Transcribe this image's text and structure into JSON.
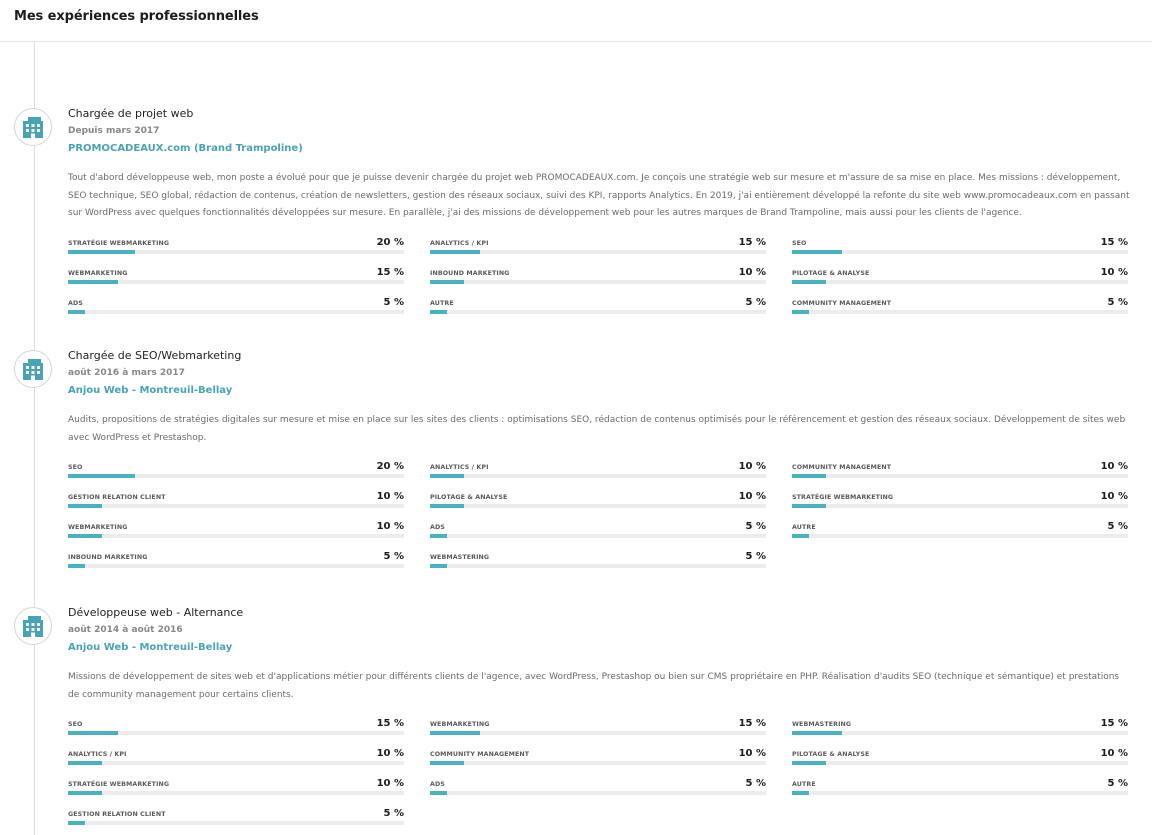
{
  "page": {
    "title": "Mes expériences professionnelles"
  },
  "colors": {
    "accent": "#4ab2bf",
    "company": "#4aa3b2",
    "track": "#ececec"
  },
  "experiences": [
    {
      "icon": "building-icon",
      "title": "Chargée de projet web",
      "period": "Depuis mars 2017",
      "company": "PROMOCADEAUX.com (Brand Trampoline)",
      "description": "Tout d'abord développeuse web, mon poste a évolué pour que je puisse devenir chargée du projet web PROMOCADEAUX.com. Je conçois une stratégie web sur mesure et m'assure de sa mise en place. Mes missions : développement, SEO technique, SEO global, rédaction de contenus, création de newsletters, gestion des réseaux sociaux, suivi des KPI, rapports Analytics. En 2019, j'ai entièrement développé la refonte du site web www.promocadeaux.com en passant sur WordPress avec quelques fonctionnalités développées sur mesure. En parallèle, j'ai des missions de développement web pour les autres marques de Brand Trampoline, mais aussi pour les clients de l'agence.",
      "skills": [
        {
          "name": "Stratégie Webmarketing",
          "label": "20 %",
          "value": 0.2
        },
        {
          "name": "Analytics / KPI",
          "label": "15 %",
          "value": 0.15
        },
        {
          "name": "SEO",
          "label": "15 %",
          "value": 0.15
        },
        {
          "name": "Webmarketing",
          "label": "15 %",
          "value": 0.15
        },
        {
          "name": "Inbound marketing",
          "label": "10 %",
          "value": 0.1
        },
        {
          "name": "Pilotage & analyse",
          "label": "10 %",
          "value": 0.1
        },
        {
          "name": "Ads",
          "label": "5 %",
          "value": 0.05
        },
        {
          "name": "Autre",
          "label": "5 %",
          "value": 0.05
        },
        {
          "name": "Community management",
          "label": "5 %",
          "value": 0.05
        }
      ]
    },
    {
      "icon": "building-icon",
      "title": "Chargée de SEO/Webmarketing",
      "period": "août 2016 à mars 2017",
      "company": "Anjou Web - Montreuil-Bellay",
      "description": "Audits, propositions de stratégies digitales sur mesure et mise en place sur les sites des clients : optimisations SEO, rédaction de contenus optimisés pour le référencement et gestion des réseaux sociaux. Développement de sites web avec WordPress et Prestashop.",
      "skills": [
        {
          "name": "SEO",
          "label": "20 %",
          "value": 0.2
        },
        {
          "name": "Analytics / KPI",
          "label": "10 %",
          "value": 0.1
        },
        {
          "name": "Community management",
          "label": "10 %",
          "value": 0.1
        },
        {
          "name": "Gestion relation client",
          "label": "10 %",
          "value": 0.1
        },
        {
          "name": "Pilotage & analyse",
          "label": "10 %",
          "value": 0.1
        },
        {
          "name": "Stratégie Webmarketing",
          "label": "10 %",
          "value": 0.1
        },
        {
          "name": "Webmarketing",
          "label": "10 %",
          "value": 0.1
        },
        {
          "name": "Ads",
          "label": "5 %",
          "value": 0.05
        },
        {
          "name": "Autre",
          "label": "5 %",
          "value": 0.05
        },
        {
          "name": "Inbound marketing",
          "label": "5 %",
          "value": 0.05
        },
        {
          "name": "Webmastering",
          "label": "5 %",
          "value": 0.05
        }
      ]
    },
    {
      "icon": "building-icon",
      "title": "Développeuse web - Alternance",
      "period": "août 2014 à août 2016",
      "company": "Anjou Web - Montreuil-Bellay",
      "description": "Missions de développement de sites web et d'applications métier pour différents clients de l'agence, avec WordPress, Prestashop ou bien sur CMS propriétaire en PHP. Réalisation d'audits SEO (technique et sémantique) et prestations de community management pour certains clients.",
      "skills": [
        {
          "name": "SEO",
          "label": "15 %",
          "value": 0.15
        },
        {
          "name": "Webmarketing",
          "label": "15 %",
          "value": 0.15
        },
        {
          "name": "Webmastering",
          "label": "15 %",
          "value": 0.15
        },
        {
          "name": "Analytics / KPI",
          "label": "10 %",
          "value": 0.1
        },
        {
          "name": "Community management",
          "label": "10 %",
          "value": 0.1
        },
        {
          "name": "Pilotage & analyse",
          "label": "10 %",
          "value": 0.1
        },
        {
          "name": "Stratégie Webmarketing",
          "label": "10 %",
          "value": 0.1
        },
        {
          "name": "Ads",
          "label": "5 %",
          "value": 0.05
        },
        {
          "name": "Autre",
          "label": "5 %",
          "value": 0.05
        },
        {
          "name": "Gestion relation client",
          "label": "5 %",
          "value": 0.05
        }
      ]
    }
  ]
}
